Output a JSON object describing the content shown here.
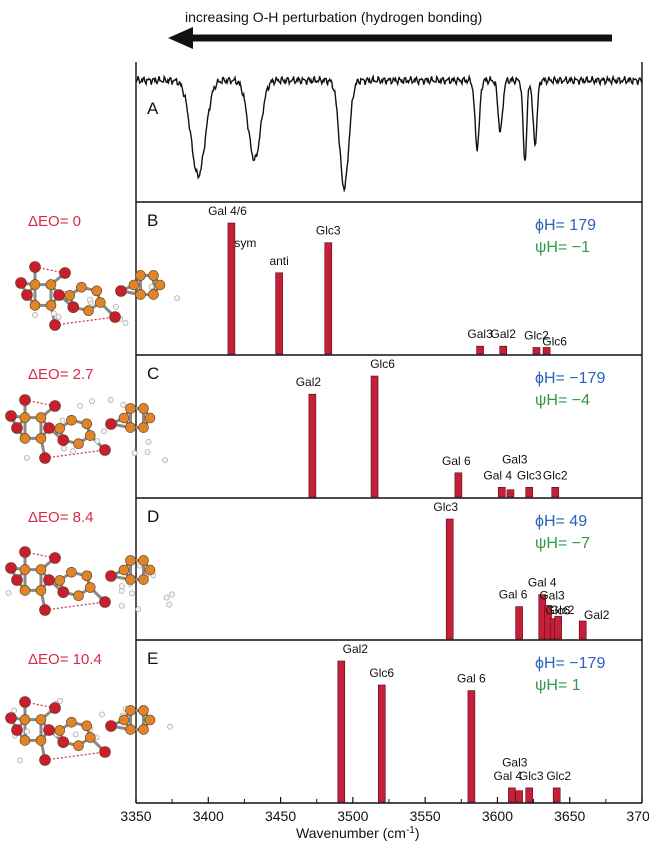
{
  "top_arrow": {
    "label": "increasing O-H perturbation (hydrogen bonding)"
  },
  "chart_data": {
    "type": "bar",
    "xlabel": "Wavenumber (cm-1)",
    "xlim": [
      3350,
      3700
    ],
    "xticks": [
      3350,
      3400,
      3450,
      3500,
      3550,
      3600,
      3650,
      3700
    ],
    "colors": {
      "bar": "#c4203a",
      "energy": "#d62a4a",
      "phi": "#2a63b8",
      "psi": "#2e9a4a",
      "atom_carbon": "#e0842a",
      "atom_oxygen": "#c81e2e"
    },
    "spectrum": {
      "panel": "A",
      "type": "line",
      "baseline": 1.0,
      "peaks": [
        {
          "x": 3393,
          "depth": 0.78,
          "width": 7
        },
        {
          "x": 3432,
          "depth": 0.65,
          "width": 6
        },
        {
          "x": 3494,
          "depth": 0.88,
          "width": 4.5
        },
        {
          "x": 3586,
          "depth": 0.55,
          "width": 2.2
        },
        {
          "x": 3602,
          "depth": 0.42,
          "width": 2.2
        },
        {
          "x": 3619,
          "depth": 0.66,
          "width": 1.8
        },
        {
          "x": 3626,
          "depth": 0.52,
          "width": 2.0
        }
      ]
    },
    "panels": [
      {
        "letter": "B",
        "energy": "ΔEO= 0",
        "phi": "ϕH= 179",
        "psi": "ψH= −1",
        "bars": [
          {
            "x": 3416,
            "value": 1.0,
            "label": "Gal 4/6"
          },
          {
            "x": 3449,
            "value": 0.62,
            "label": "anti"
          },
          {
            "x": 3483,
            "value": 0.85,
            "label": "Glc3"
          },
          {
            "x": 3588,
            "value": 0.06,
            "label": "Gal3"
          },
          {
            "x": 3604,
            "value": 0.06,
            "label": "Gal2"
          },
          {
            "x": 3627,
            "value": 0.05,
            "label": "Glc2"
          },
          {
            "x": 3634,
            "value": 0.05,
            "label": "Glc6"
          }
        ],
        "extra_labels": [
          "sym"
        ]
      },
      {
        "letter": "C",
        "energy": "ΔEO= 2.7",
        "phi": "ϕH= −179",
        "psi": "ψH= −4",
        "bars": [
          {
            "x": 3472,
            "value": 0.85,
            "label": "Gal2"
          },
          {
            "x": 3515,
            "value": 1.0,
            "label": "Glc6"
          },
          {
            "x": 3573,
            "value": 0.2,
            "label": "Gal 6"
          },
          {
            "x": 3603,
            "value": 0.08,
            "label": "Gal 4"
          },
          {
            "x": 3609,
            "value": 0.06,
            "label": ""
          },
          {
            "x": 3622,
            "value": 0.08,
            "label": "Glc3"
          },
          {
            "x": 3640,
            "value": 0.08,
            "label": "Glc2"
          }
        ],
        "extra_labels": [
          "Gal3"
        ]
      },
      {
        "letter": "D",
        "energy": "ΔEO= 8.4",
        "phi": "ϕH= 49",
        "psi": "ψH= −7",
        "bars": [
          {
            "x": 3567,
            "value": 1.0,
            "label": "Glc3"
          },
          {
            "x": 3615,
            "value": 0.27,
            "label": "Gal 6"
          },
          {
            "x": 3631,
            "value": 0.37,
            "label": "Gal 4"
          },
          {
            "x": 3635,
            "value": 0.28,
            "label": "Gal3"
          },
          {
            "x": 3639,
            "value": 0.17,
            "label": "Glc6"
          },
          {
            "x": 3642,
            "value": 0.19,
            "label": "Glc2"
          },
          {
            "x": 3659,
            "value": 0.15,
            "label": "Gal2"
          }
        ]
      },
      {
        "letter": "E",
        "energy": "ΔEO= 10.4",
        "phi": "ϕH= −179",
        "psi": "ψH= 1",
        "bars": [
          {
            "x": 3492,
            "value": 1.0,
            "label": "Gal2"
          },
          {
            "x": 3520,
            "value": 0.83,
            "label": "Glc6"
          },
          {
            "x": 3582,
            "value": 0.79,
            "label": "Gal 6"
          },
          {
            "x": 3610,
            "value": 0.1,
            "label": "Gal 4"
          },
          {
            "x": 3615,
            "value": 0.08,
            "label": ""
          },
          {
            "x": 3622,
            "value": 0.1,
            "label": "Glc3"
          },
          {
            "x": 3641,
            "value": 0.1,
            "label": "Glc2"
          }
        ],
        "extra_labels": [
          "Gal3"
        ]
      }
    ]
  }
}
